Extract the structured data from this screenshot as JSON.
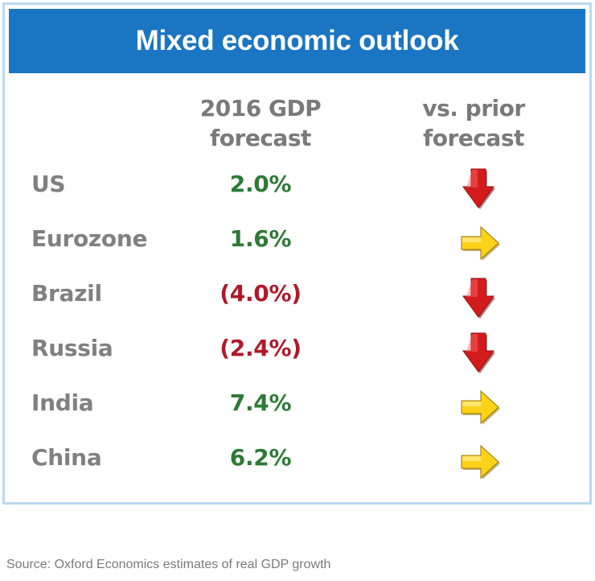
{
  "title": "Mixed economic outlook",
  "columns": {
    "gdp": [
      "2016 GDP",
      "forecast"
    ],
    "prior": [
      "vs. prior",
      "forecast"
    ]
  },
  "source": "Source: Oxford Economics estimates of real GDP growth",
  "colors": {
    "positive": "#2d7a36",
    "negative": "#b0182a",
    "down_arrow": "#d41b1b",
    "flat_arrow": "#ffd21a",
    "header_bg": "#1a75c2"
  },
  "chart_data": {
    "type": "table",
    "title": "Mixed economic outlook",
    "headers": [
      "",
      "2016 GDP forecast",
      "vs. prior forecast"
    ],
    "rows": [
      {
        "country": "US",
        "value_label": "2.0%",
        "value": 2.0,
        "change": "down",
        "change_icon": "down-arrow-icon"
      },
      {
        "country": "Eurozone",
        "value_label": "1.6%",
        "value": 1.6,
        "change": "flat",
        "change_icon": "right-arrow-icon"
      },
      {
        "country": "Brazil",
        "value_label": "(4.0%)",
        "value": -4.0,
        "change": "down",
        "change_icon": "down-arrow-icon"
      },
      {
        "country": "Russia",
        "value_label": "(2.4%)",
        "value": -2.4,
        "change": "down",
        "change_icon": "down-arrow-icon"
      },
      {
        "country": "India",
        "value_label": "7.4%",
        "value": 7.4,
        "change": "flat",
        "change_icon": "right-arrow-icon"
      },
      {
        "country": "China",
        "value_label": "6.2%",
        "value": 6.2,
        "change": "flat",
        "change_icon": "right-arrow-icon"
      }
    ]
  }
}
